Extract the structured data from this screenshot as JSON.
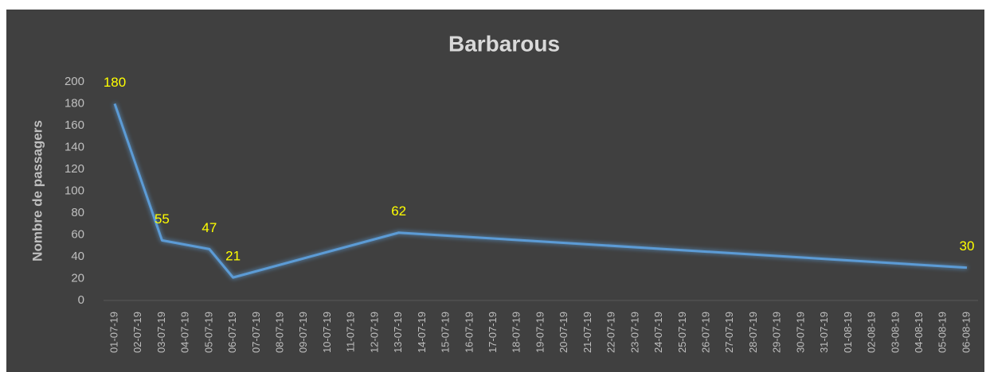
{
  "chart_data": {
    "type": "line",
    "title": "Barbarous",
    "y_label": "Nombre de passagers",
    "categories": [
      "01-07-19",
      "02-07-19",
      "03-07-19",
      "04-07-19",
      "05-07-19",
      "06-07-19",
      "07-07-19",
      "08-07-19",
      "09-07-19",
      "10-07-19",
      "11-07-19",
      "12-07-19",
      "13-07-19",
      "14-07-19",
      "15-07-19",
      "16-07-19",
      "17-07-19",
      "18-07-19",
      "19-07-19",
      "20-07-19",
      "21-07-19",
      "22-07-19",
      "23-07-19",
      "24-07-19",
      "25-07-19",
      "26-07-19",
      "27-07-19",
      "28-07-19",
      "29-07-19",
      "30-07-19",
      "31-07-19",
      "01-08-19",
      "02-08-19",
      "03-08-19",
      "04-08-19",
      "05-08-19",
      "06-08-19"
    ],
    "x": [
      "01-07-19",
      "03-07-19",
      "05-07-19",
      "06-07-19",
      "13-07-19",
      "06-08-19"
    ],
    "values": [
      180,
      55,
      47,
      21,
      62,
      30
    ],
    "color": "#5b9bd5",
    "label_color": "#ffff00",
    "ylim": [
      0,
      200
    ],
    "yticks": [
      0,
      20,
      40,
      60,
      80,
      100,
      120,
      140,
      160,
      180,
      200
    ],
    "grid": false
  }
}
